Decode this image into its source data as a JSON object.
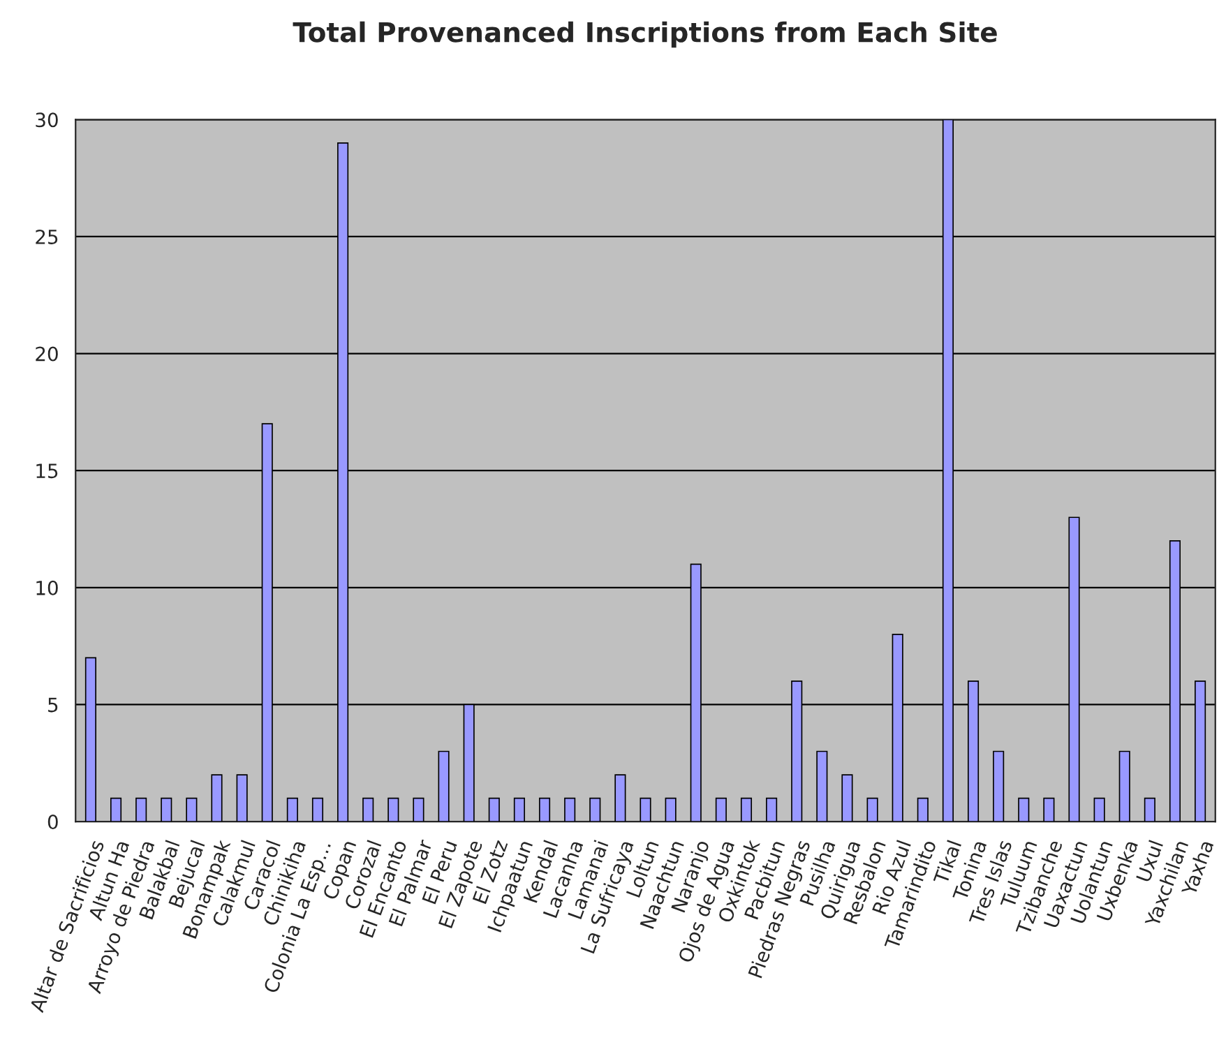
{
  "chart_data": {
    "type": "bar",
    "title": "Total Provenanced Inscriptions from Each Site",
    "categories": [
      "Altar de Sacrificios",
      "Altun Ha",
      "Arroyo de Piedra",
      "Balakbal",
      "Bejucal",
      "Bonampak",
      "Calakmul",
      "Caracol",
      "Chinikiha",
      "Colonia La Esp…",
      "Copan",
      "Corozal",
      "El Encanto",
      "El Palmar",
      "El Peru",
      "El Zapote",
      "El Zotz",
      "Ichpaatun",
      "Kendal",
      "Lacanha",
      "Lamanai",
      "La Sufricaya",
      "Loltun",
      "Naachtun",
      "Naranjo",
      "Ojos de Agua",
      "Oxkintok",
      "Pacbitun",
      "Piedras Negras",
      "Pusilha",
      "Quirigua",
      "Resbalon",
      "Rio Azul",
      "Tamarindito",
      "Tikal",
      "Tonina",
      "Tres Islas",
      "Tuluum",
      "Tzibanche",
      "Uaxactun",
      "Uolantun",
      "Uxbenka",
      "Uxul",
      "Yaxchilan",
      "Yaxha"
    ],
    "values": [
      7,
      1,
      1,
      1,
      1,
      2,
      2,
      17,
      1,
      1,
      29,
      1,
      1,
      1,
      3,
      5,
      1,
      1,
      1,
      1,
      1,
      2,
      1,
      1,
      11,
      1,
      1,
      1,
      6,
      3,
      2,
      1,
      8,
      1,
      30,
      6,
      3,
      1,
      1,
      13,
      1,
      3,
      1,
      12,
      6
    ],
    "color": "#9999ff",
    "ylim": [
      0,
      30
    ],
    "yticks": [
      0,
      5,
      10,
      15,
      20,
      25,
      30
    ],
    "grid": "y"
  }
}
